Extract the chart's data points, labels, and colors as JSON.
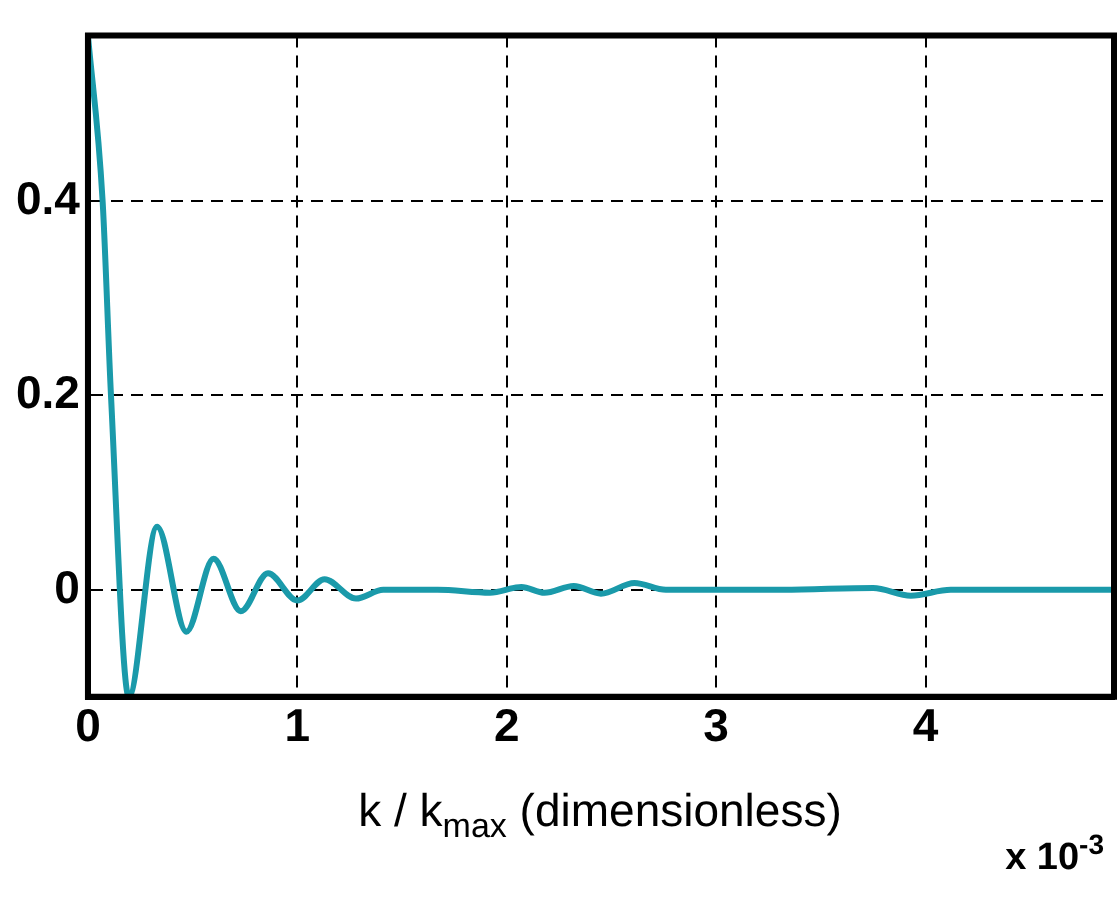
{
  "chart_data": {
    "type": "line",
    "xlabel": "k / k$_{max}$ (dimensionless)",
    "annotations": [
      "x 10$^{-3}$"
    ],
    "x": [
      0,
      0.07,
      0.11,
      0.195,
      0.33,
      0.47,
      0.6,
      0.73,
      0.86,
      1.0,
      1.13,
      1.28,
      1.41,
      1.67,
      1.92,
      2.07,
      2.18,
      2.32,
      2.45,
      2.61,
      2.76,
      3.32,
      3.75,
      3.93,
      4.12,
      4.9
    ],
    "series": [
      {
        "color": "#1a9aaa",
        "values": [
          0.57,
          0.4,
          0.2,
          -0.11,
          0.065,
          -0.043,
          0.032,
          -0.022,
          0.017,
          -0.011,
          0.011,
          -0.009,
          0,
          0,
          -0.003,
          0.003,
          -0.003,
          0.004,
          -0.004,
          0.007,
          0,
          0,
          0.002,
          -0.006,
          0,
          0
        ]
      }
    ],
    "xlim": [
      0,
      4.9
    ],
    "xticks": [
      0,
      1,
      2,
      3,
      4
    ],
    "ylim": [
      -0.11,
      0.57
    ],
    "yticks": [
      0,
      0.2,
      0.4
    ],
    "grid": true,
    "legend": false,
    "marker": "none",
    "line_style": "solid"
  }
}
